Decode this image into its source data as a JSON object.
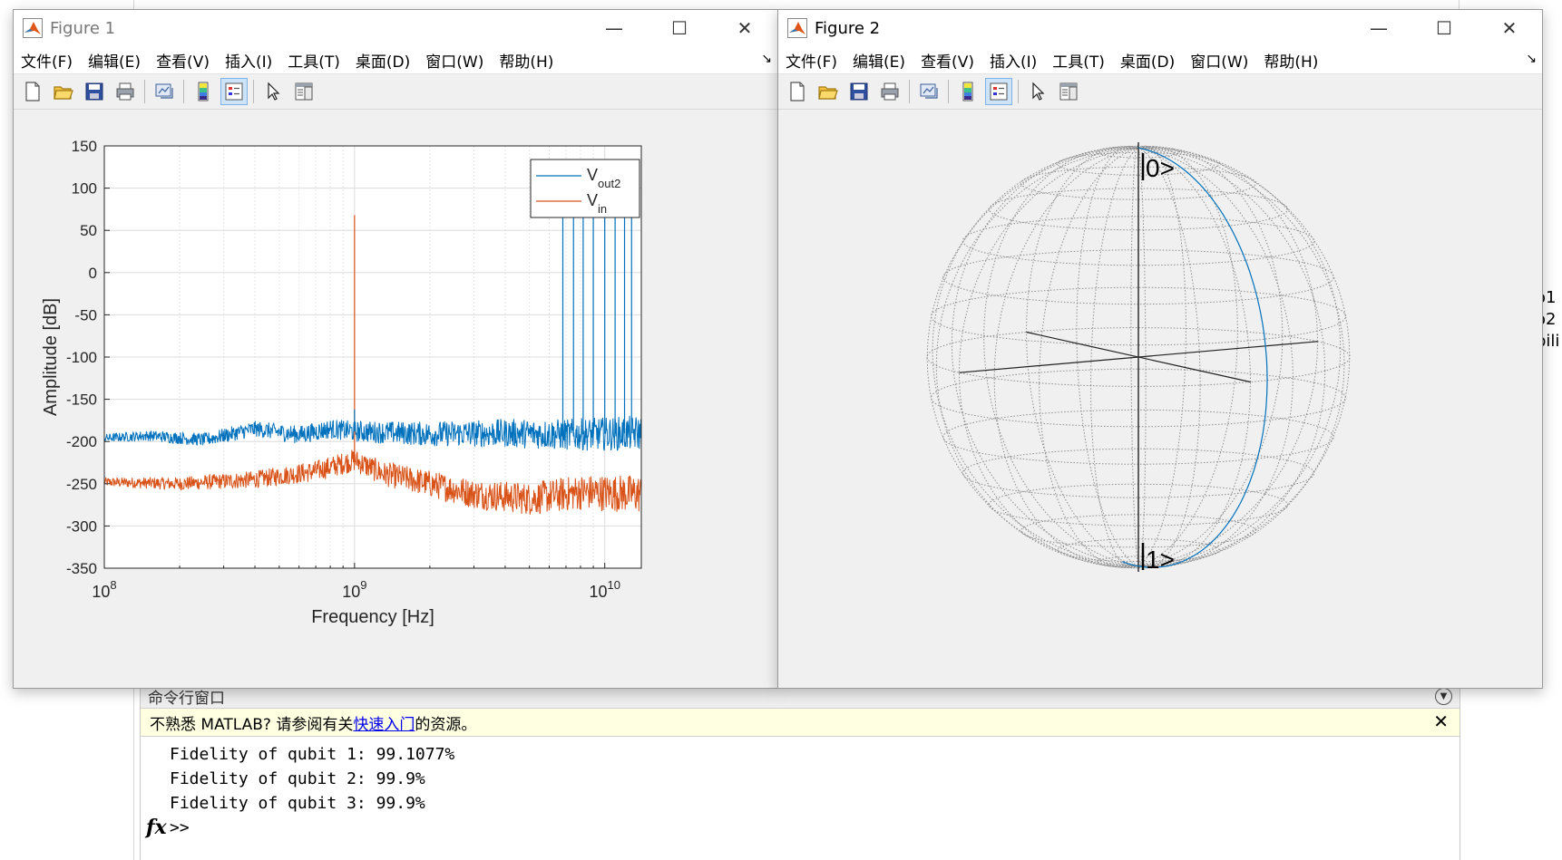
{
  "figure1": {
    "title": "Figure 1",
    "menu": [
      "文件(F)",
      "编辑(E)",
      "查看(V)",
      "插入(I)",
      "工具(T)",
      "桌面(D)",
      "窗口(W)",
      "帮助(H)"
    ],
    "toolbar_icons": [
      "new-figure-icon",
      "open-file-icon",
      "save-icon",
      "print-icon",
      "link-plot-icon",
      "colorbar-icon",
      "legend-icon",
      "pointer-icon",
      "property-editor-icon"
    ]
  },
  "figure2": {
    "title": "Figure 2",
    "menu": [
      "文件(F)",
      "编辑(E)",
      "查看(V)",
      "插入(I)",
      "工具(T)",
      "桌面(D)",
      "窗口(W)",
      "帮助(H)"
    ],
    "toolbar_icons": [
      "new-figure-icon",
      "open-file-icon",
      "save-icon",
      "print-icon",
      "link-plot-icon",
      "colorbar-icon",
      "legend-icon",
      "pointer-icon",
      "property-editor-icon"
    ],
    "bloch": {
      "labels": [
        "|0>",
        "|1>"
      ]
    }
  },
  "chart_data": {
    "type": "line",
    "title": "",
    "xlabel": "Frequency [Hz]",
    "ylabel": "Amplitude [dB]",
    "xscale": "log",
    "xlim": [
      100000000,
      14000000000
    ],
    "ylim": [
      -350,
      150
    ],
    "yticks": [
      150,
      100,
      50,
      0,
      -50,
      -100,
      -150,
      -200,
      -250,
      -300,
      -350
    ],
    "xticks": [
      {
        "value": 100000000,
        "base": "10",
        "exp": "8"
      },
      {
        "value": 1000000000,
        "base": "10",
        "exp": "9"
      },
      {
        "value": 10000000000,
        "base": "10",
        "exp": "10"
      }
    ],
    "grid": true,
    "legend_position": "top-right",
    "series": [
      {
        "name": "V",
        "name_sub": "out2",
        "color": "#0072BD",
        "noise_floor": [
          [
            100000000,
            -196
          ],
          [
            150000000,
            -193
          ],
          [
            250000000,
            -198
          ],
          [
            400000000,
            -185
          ],
          [
            600000000,
            -192
          ],
          [
            800000000,
            -185
          ],
          [
            1000000000,
            -188
          ],
          [
            2000000000,
            -191
          ],
          [
            4000000000,
            -190
          ],
          [
            7000000000,
            -192
          ],
          [
            14000000000,
            -190
          ]
        ],
        "spikes": [
          [
            1000000000,
            -162
          ],
          [
            6800000000,
            75
          ],
          [
            7500000000,
            75
          ],
          [
            8200000000,
            75
          ],
          [
            9000000000,
            75
          ],
          [
            10000000000,
            75
          ],
          [
            11000000000,
            75
          ],
          [
            12000000000,
            75
          ],
          [
            12800000000,
            75
          ]
        ]
      },
      {
        "name": "V",
        "name_sub": "in",
        "color": "#D95319",
        "noise_floor": [
          [
            100000000,
            -248
          ],
          [
            200000000,
            -250
          ],
          [
            400000000,
            -245
          ],
          [
            700000000,
            -235
          ],
          [
            1000000000,
            -222
          ],
          [
            1300000000,
            -238
          ],
          [
            2000000000,
            -250
          ],
          [
            3000000000,
            -262
          ],
          [
            5000000000,
            -268
          ],
          [
            8000000000,
            -260
          ],
          [
            14000000000,
            -262
          ]
        ],
        "spikes": [
          [
            1000000000,
            68
          ]
        ]
      }
    ]
  },
  "right_panel_fragments": [
    "o1",
    "o2",
    "bili"
  ],
  "command_window": {
    "title": "命令行窗口",
    "banner_prefix": "不熟悉 MATLAB? 请参阅有关",
    "banner_link": "快速入门",
    "banner_suffix": "的资源。",
    "lines": [
      "Fidelity of qubit 1: 99.1077%",
      "Fidelity of qubit 2: 99.9%",
      "Fidelity of qubit 3: 99.9%"
    ],
    "prompt": ">>",
    "fx": "fx"
  }
}
